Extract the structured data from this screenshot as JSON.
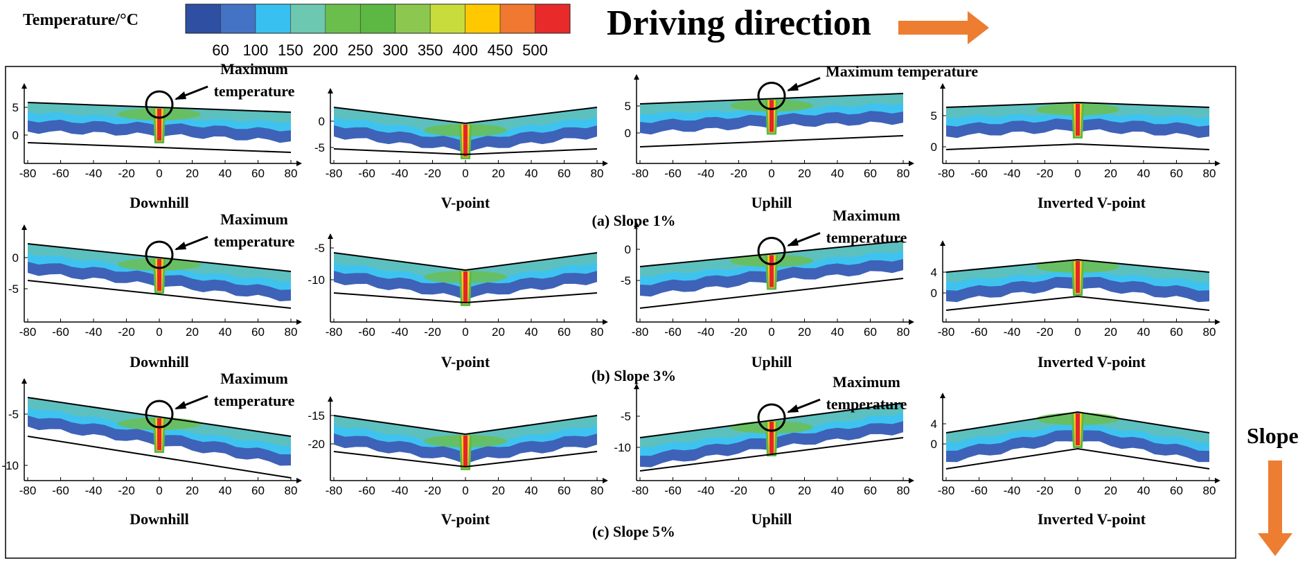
{
  "legend": {
    "title": "Temperature/°C",
    "tick_labels": [
      "60",
      "100",
      "150",
      "200",
      "250",
      "300",
      "350",
      "400",
      "450",
      "500"
    ],
    "colors": [
      "#2f4fa3",
      "#4472c4",
      "#38c0f0",
      "#6cc8b0",
      "#6cbe4c",
      "#5cb843",
      "#8cc850",
      "#c8dc3c",
      "#ffc800",
      "#f07830",
      "#e82a2a"
    ]
  },
  "driving_direction": {
    "label": "Driving direction",
    "arrow_color": "#ed7d31"
  },
  "slope_axis": {
    "label": "Slope",
    "arrow_color": "#ed7d31"
  },
  "x_tick_labels": [
    "-80",
    "-60",
    "-40",
    "-20",
    "0",
    "20",
    "40",
    "60",
    "80"
  ],
  "rows": [
    {
      "caption": "(a) Slope 1%",
      "panels": [
        {
          "name": "Downhill",
          "y_ticks": [
            "5",
            "0"
          ],
          "annotation": "Maximum temperature",
          "annotation_lines": [
            "Maximum",
            "temperature"
          ]
        },
        {
          "name": "V-point",
          "y_ticks": [
            "0",
            "-5"
          ]
        },
        {
          "name": "Uphill",
          "y_ticks": [
            "5",
            "0"
          ],
          "annotation": "Maximum temperature",
          "annotation_lines": [
            "Maximum temperature"
          ]
        },
        {
          "name": "Inverted V-point",
          "y_ticks": [
            "5",
            "0"
          ]
        }
      ]
    },
    {
      "caption": "(b) Slope 3%",
      "panels": [
        {
          "name": "Downhill",
          "y_ticks": [
            "0",
            "-5"
          ],
          "annotation": "Maximum temperature",
          "annotation_lines": [
            "Maximum",
            "temperature"
          ]
        },
        {
          "name": "V-point",
          "y_ticks": [
            "-5",
            "-10"
          ]
        },
        {
          "name": "Uphill",
          "y_ticks": [
            "0",
            "-5"
          ],
          "annotation": "Maximum temperature",
          "annotation_lines": [
            "Maximum",
            "temperature"
          ]
        },
        {
          "name": "Inverted V-point",
          "y_ticks": [
            "4",
            "0"
          ]
        }
      ]
    },
    {
      "caption": "(c) Slope 5%",
      "panels": [
        {
          "name": "Downhill",
          "y_ticks": [
            "-5",
            "-10"
          ],
          "annotation": "Maximum temperature",
          "annotation_lines": [
            "Maximum",
            "temperature"
          ]
        },
        {
          "name": "V-point",
          "y_ticks": [
            "-15",
            "-20"
          ]
        },
        {
          "name": "Uphill",
          "y_ticks": [
            "-5",
            "-10"
          ],
          "annotation": "Maximum temperature",
          "annotation_lines": [
            "Maximum",
            "temperature"
          ]
        },
        {
          "name": "Inverted V-point",
          "y_ticks": [
            "4",
            "0"
          ]
        }
      ]
    }
  ]
}
